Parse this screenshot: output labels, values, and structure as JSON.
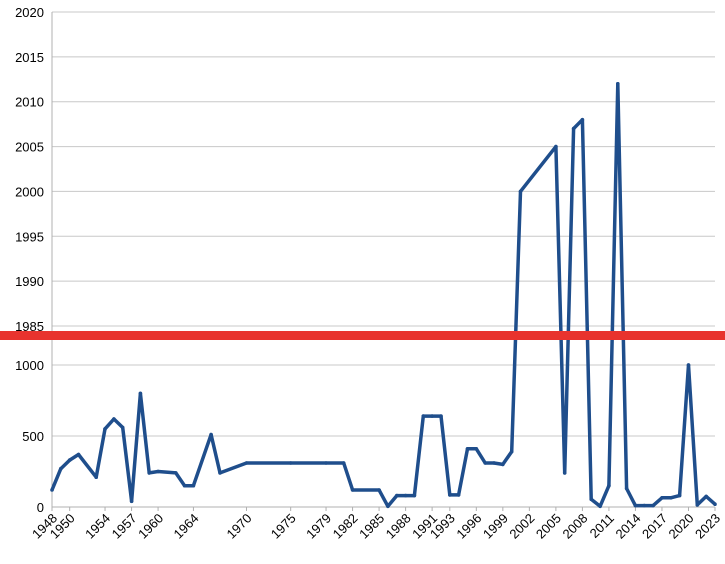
{
  "chart_data": {
    "type": "line",
    "title": "",
    "xlabel": "",
    "ylabel": "",
    "grid": true,
    "axis_break": "y-axis broken between 1000 and 1985",
    "colors": {
      "line": "#1F4E8C",
      "break_bar": "#E8332E",
      "grid": "#C8C8C8",
      "axis": "#B0B0B0"
    },
    "x_tick_labels": [
      "1948",
      "1950",
      "1954",
      "1957",
      "1960",
      "1964",
      "1970",
      "1975",
      "1979",
      "1982",
      "1985",
      "1988",
      "1991",
      "1993",
      "1996",
      "1999",
      "2002",
      "2005",
      "2008",
      "2011",
      "2014",
      "2017",
      "2020",
      "2023"
    ],
    "y_tick_labels_upper": [
      "2020",
      "2015",
      "2010",
      "2005",
      "2000",
      "1995",
      "1990",
      "1985"
    ],
    "y_tick_labels_lower": [
      "1000",
      "500",
      "0"
    ],
    "ylim_lower": [
      0,
      1100
    ],
    "ylim_upper": [
      1985,
      2020
    ],
    "series": [
      {
        "x": [
          "1948",
          "1949",
          "1950",
          "1951",
          "1953",
          "1954",
          "1955",
          "1956",
          "1957",
          "1958",
          "1959",
          "1960",
          "1962",
          "1963",
          "1964",
          "1966",
          "1967",
          "1970",
          "1975",
          "1979",
          "1981",
          "1982",
          "1985",
          "1986",
          "1987",
          "1988",
          "1989",
          "1990",
          "1991",
          "1992",
          "1993",
          "1994",
          "1995",
          "1996",
          "1997",
          "1998",
          "1999",
          "2000",
          "2001",
          "2005",
          "2006",
          "2007",
          "2008",
          "2009",
          "2010",
          "2011",
          "2012",
          "2013",
          "2014",
          "2015",
          "2016",
          "2017",
          "2018",
          "2019",
          "2020",
          "2021",
          "2022",
          "2023"
        ],
        "values": [
          120,
          270,
          330,
          370,
          210,
          550,
          620,
          560,
          40,
          800,
          240,
          250,
          240,
          150,
          150,
          510,
          240,
          310,
          310,
          310,
          310,
          120,
          120,
          5,
          80,
          80,
          80,
          640,
          640,
          640,
          85,
          85,
          410,
          410,
          310,
          310,
          300,
          390,
          2000,
          2005,
          240,
          2007,
          2008,
          55,
          5,
          150,
          2012,
          130,
          10,
          10,
          10,
          65,
          65,
          80,
          1000,
          15,
          75,
          20
        ]
      }
    ]
  }
}
